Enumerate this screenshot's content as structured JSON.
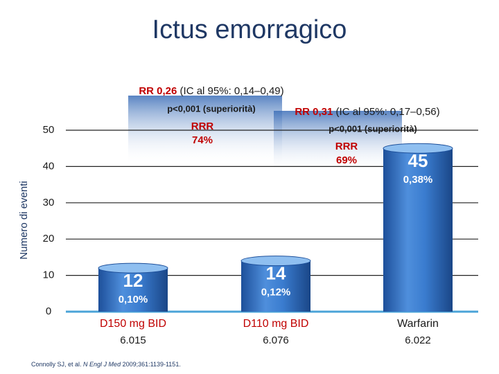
{
  "chart_data": {
    "type": "bar",
    "title": "Ictus emorragico",
    "y_label": "Numero di eventi",
    "categories": [
      "D150 mg BID",
      "D110 mg BID",
      "Warfarin"
    ],
    "category_colors": [
      "#c00000",
      "#c00000",
      "#1a1a1a"
    ],
    "counts": [
      "6.015",
      "6.076",
      "6.022"
    ],
    "values": [
      12,
      14,
      45
    ],
    "rates": [
      "0,10%",
      "0,12%",
      "0,38%"
    ],
    "color": "#2f6fc0",
    "ylim": [
      0,
      50
    ],
    "yticks": [
      0,
      10,
      20,
      30,
      40,
      50
    ],
    "grid": true,
    "comparisons": [
      {
        "rr": "RR 0,26",
        "ci": "(IC al 95%: 0,14–0,49)",
        "p": "p<0,001 (superiorità)",
        "rrr": "RRR",
        "rrr_value": "74%"
      },
      {
        "rr": "RR 0,31",
        "ci": "(IC al 95%: 0,17–0,56)",
        "p": "p<0,001 (superiorità)",
        "rrr": "RRR",
        "rrr_value": "69%"
      }
    ],
    "source": {
      "authors": "Connolly SJ, et al. ",
      "journal": "N Engl J Med",
      "ref": " 2009;361:1139-1151."
    }
  }
}
